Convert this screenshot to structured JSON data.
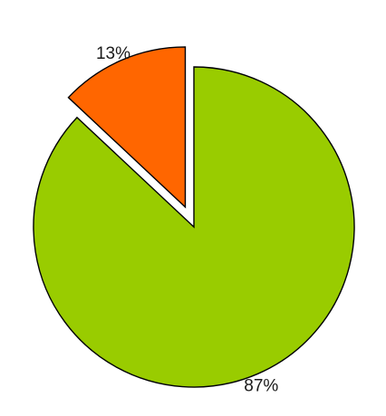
{
  "chart_data": {
    "type": "pie",
    "title": "",
    "start_angle_deg": 0,
    "direction": "counterclockwise",
    "slices": [
      {
        "value": 87,
        "label": "87%",
        "color": "#99cc00",
        "exploded": false
      },
      {
        "value": 13,
        "label": "13%",
        "color": "#ff6600",
        "exploded": true
      }
    ],
    "legend": "none",
    "stroke_color": "#000000"
  }
}
